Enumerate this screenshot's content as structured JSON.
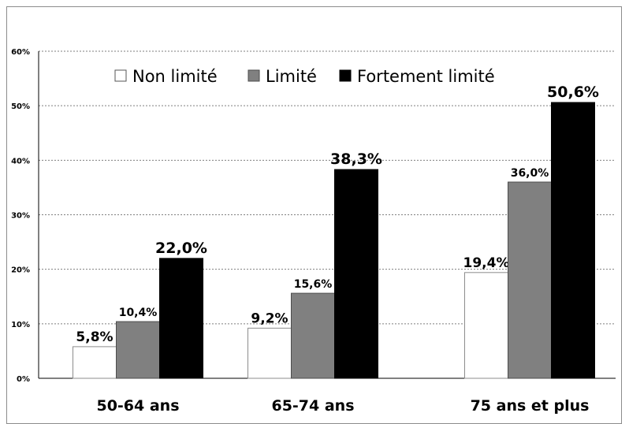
{
  "chart_data": {
    "type": "bar",
    "categories": [
      "50-64 ans",
      "65-74 ans",
      "75 ans et plus"
    ],
    "series": [
      {
        "name": "Non limité",
        "values": [
          5.8,
          9.2,
          19.4
        ],
        "labels": [
          "5,8%",
          "9,2%",
          "19,4%"
        ],
        "color": "#ffffff"
      },
      {
        "name": "Limité",
        "values": [
          10.4,
          15.6,
          36.0
        ],
        "labels": [
          "10,4%",
          "15,6%",
          "36,0%"
        ],
        "color": "#808080"
      },
      {
        "name": "Fortement limité",
        "values": [
          22.0,
          38.3,
          50.6
        ],
        "labels": [
          "22,0%",
          "38,3%",
          "50,6%"
        ],
        "color": "#000000"
      }
    ],
    "yticks": [
      "0%",
      "10%",
      "20%",
      "30%",
      "40%",
      "50%",
      "60%"
    ],
    "ylim": [
      0,
      60
    ],
    "grid": true,
    "legend": "top"
  }
}
